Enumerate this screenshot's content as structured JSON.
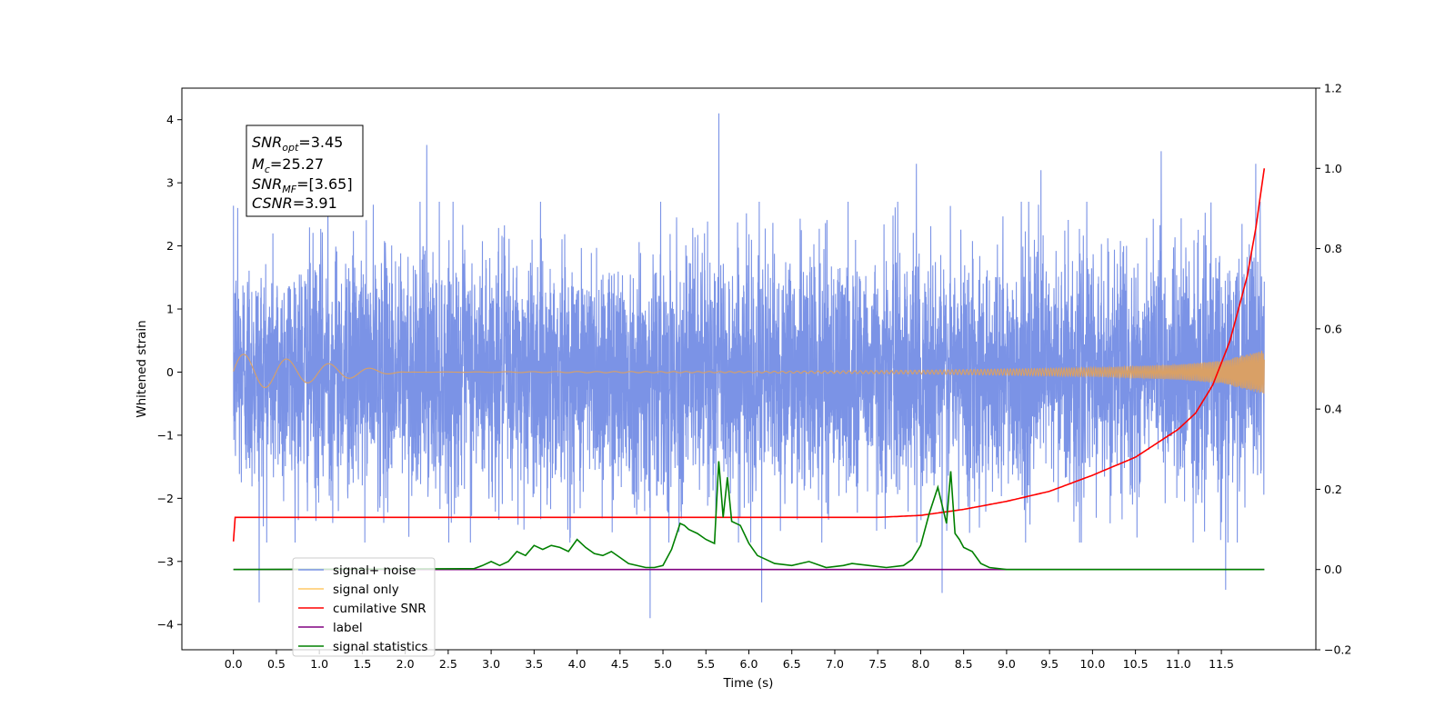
{
  "chart_data": {
    "type": "line",
    "xlabel": "Time (s)",
    "ylabel_left": "Whitened strain",
    "xlim": [
      -0.6,
      12.6
    ],
    "ylim_left": [
      -4.4,
      4.5
    ],
    "ylim_right": [
      -0.2,
      1.2
    ],
    "x_ticks": [
      "0.0",
      "0.5",
      "1.0",
      "1.5",
      "2.0",
      "2.5",
      "3.0",
      "3.5",
      "4.0",
      "4.5",
      "5.0",
      "5.5",
      "6.0",
      "6.5",
      "7.0",
      "7.5",
      "8.0",
      "8.5",
      "9.0",
      "9.5",
      "10.0",
      "10.5",
      "11.0",
      "11.5"
    ],
    "y_ticks_left": [
      "4",
      "3",
      "2",
      "1",
      "0",
      "−1",
      "−2",
      "−3",
      "−4"
    ],
    "y_ticks_right": [
      "1.2",
      "1.0",
      "0.8",
      "0.6",
      "0.4",
      "0.2",
      "0.0",
      "−0.2"
    ],
    "grid": false,
    "legend_position": "lower-left",
    "annotation": {
      "snr_opt": {
        "base": "SNR",
        "sub": "opt",
        "value": "=3.45"
      },
      "mc": {
        "base": "M",
        "sub": "c",
        "value": "=25.27"
      },
      "snr_mf": {
        "base": "SNR",
        "sub": "MF",
        "value": "=[3.65]"
      },
      "csnr": {
        "base": "CSNR",
        "value": "=3.91"
      }
    },
    "series": [
      {
        "name": "signal+ noise",
        "axis": "left",
        "color": "#7b93e6",
        "x_range": [
          0.0,
          12.0
        ],
        "envelope_peaks": [
          [
            0.05,
            2.6
          ],
          [
            1.1,
            2.9
          ],
          [
            2.25,
            3.6
          ],
          [
            5.65,
            4.1
          ],
          [
            7.95,
            3.3
          ],
          [
            9.4,
            3.2
          ],
          [
            10.8,
            3.5
          ],
          [
            11.9,
            3.3
          ]
        ],
        "envelope_troughs": [
          [
            0.3,
            -3.65
          ],
          [
            4.85,
            -3.9
          ],
          [
            6.15,
            -3.65
          ],
          [
            8.25,
            -3.5
          ],
          [
            11.55,
            -3.45
          ]
        ]
      },
      {
        "name": "signal only",
        "axis": "left",
        "color": "#ffc966",
        "x": [
          0.0,
          2.0,
          4.0,
          6.0,
          7.0,
          8.0,
          9.0,
          10.0,
          11.0,
          11.5,
          12.0
        ],
        "amplitude": [
          0.3,
          0.0,
          0.01,
          0.01,
          0.02,
          0.03,
          0.05,
          0.07,
          0.12,
          0.18,
          0.35
        ]
      },
      {
        "name": "cumilative SNR",
        "axis": "right",
        "color": "#ff0000",
        "x": [
          0.0,
          0.02,
          7.5,
          8.0,
          8.5,
          9.0,
          9.5,
          10.0,
          10.5,
          11.0,
          11.2,
          11.4,
          11.6,
          11.8,
          11.9,
          12.0
        ],
        "y": [
          0.07,
          0.13,
          0.13,
          0.135,
          0.15,
          0.17,
          0.195,
          0.235,
          0.28,
          0.35,
          0.39,
          0.46,
          0.57,
          0.73,
          0.85,
          1.0
        ]
      },
      {
        "name": "label",
        "axis": "right",
        "color": "#800080",
        "x": [
          0.0,
          12.0
        ],
        "y": [
          0.0,
          0.0
        ]
      },
      {
        "name": "signal statistics",
        "axis": "right",
        "color": "#008000",
        "x": [
          0.0,
          2.8,
          2.9,
          3.0,
          3.1,
          3.2,
          3.3,
          3.4,
          3.5,
          3.6,
          3.7,
          3.8,
          3.9,
          4.0,
          4.1,
          4.2,
          4.3,
          4.4,
          4.5,
          4.6,
          4.8,
          4.9,
          5.0,
          5.1,
          5.2,
          5.25,
          5.3,
          5.4,
          5.5,
          5.6,
          5.65,
          5.7,
          5.75,
          5.8,
          5.9,
          6.0,
          6.1,
          6.2,
          6.3,
          6.5,
          6.7,
          6.9,
          7.1,
          7.2,
          7.4,
          7.6,
          7.8,
          7.9,
          8.0,
          8.1,
          8.2,
          8.3,
          8.35,
          8.4,
          8.45,
          8.5,
          8.6,
          8.7,
          8.8,
          9.0,
          12.0
        ],
        "y": [
          0.0,
          0.002,
          0.01,
          0.02,
          0.01,
          0.02,
          0.045,
          0.035,
          0.06,
          0.05,
          0.06,
          0.055,
          0.045,
          0.075,
          0.055,
          0.04,
          0.035,
          0.045,
          0.03,
          0.015,
          0.005,
          0.005,
          0.01,
          0.05,
          0.115,
          0.11,
          0.1,
          0.09,
          0.075,
          0.065,
          0.27,
          0.13,
          0.23,
          0.12,
          0.11,
          0.065,
          0.035,
          0.025,
          0.015,
          0.01,
          0.02,
          0.005,
          0.01,
          0.015,
          0.01,
          0.005,
          0.01,
          0.025,
          0.06,
          0.14,
          0.205,
          0.115,
          0.245,
          0.09,
          0.075,
          0.055,
          0.045,
          0.015,
          0.005,
          0.0,
          0.0
        ]
      }
    ]
  },
  "legend": [
    {
      "label": "signal+ noise",
      "color": "#7b93e6"
    },
    {
      "label": "signal only",
      "color": "#ffc966"
    },
    {
      "label": "cumilative SNR",
      "color": "#ff0000"
    },
    {
      "label": "label",
      "color": "#800080"
    },
    {
      "label": "signal statistics",
      "color": "#008000"
    }
  ]
}
